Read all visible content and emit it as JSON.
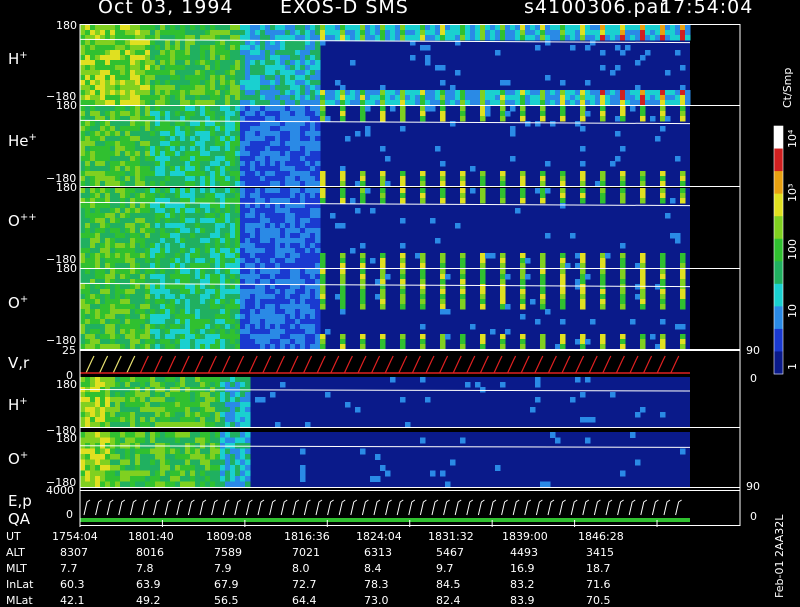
{
  "header": {
    "date": "Oct 03, 1994",
    "instrument": "EXOS-D SMS",
    "file": "s4100306.par",
    "time": "17:54:04"
  },
  "panels": [
    {
      "ion": "H",
      "charge": "+",
      "ytop": "180",
      "ybot": "−180"
    },
    {
      "ion": "He",
      "charge": "+",
      "ytop": "180",
      "ybot": "−180"
    },
    {
      "ion": "O",
      "charge": "++",
      "ytop": "180",
      "ybot": "−180"
    },
    {
      "ion": "O",
      "charge": "+",
      "ytop": "180",
      "ybot": "−180"
    }
  ],
  "vr_panel": {
    "label": "V,r",
    "ytop": "25",
    "ybot": "0",
    "right_top": "90",
    "right_bot": "0"
  },
  "low_panels": [
    {
      "ion": "H",
      "charge": "+",
      "ytop": "180",
      "ybot": "−180"
    },
    {
      "ion": "O",
      "charge": "+",
      "ytop": "180",
      "ybot": "−180"
    }
  ],
  "ep_panel": {
    "label1": "E,p",
    "label2": "QA",
    "ytop": "4000",
    "ybot": "0",
    "right_top": "90",
    "right_bot": "0"
  },
  "colorbar": {
    "unit": "Ct/Smp",
    "labels": [
      "1",
      "10",
      "100",
      "10³",
      "10⁴"
    ],
    "colors": [
      "#0a1a8a",
      "#1a3ad0",
      "#2a8ae6",
      "#1ad0d0",
      "#20b060",
      "#30c030",
      "#80d020",
      "#e0e020",
      "#e8a010",
      "#d02020",
      "#ffffff"
    ]
  },
  "chart_data": {
    "type": "heatmap",
    "title": "Oct 03, 1994   EXOS-D SMS   s4100306.par  17:54:04",
    "x_row_labels": [
      "UT",
      "ALT",
      "MLT",
      "InLat",
      "MLat"
    ],
    "x_columns": [
      {
        "UT": "1754:04",
        "ALT": "8307",
        "MLT": "7.7",
        "InLat": "60.3",
        "MLat": "42.1"
      },
      {
        "UT": "1801:40",
        "ALT": "8016",
        "MLT": "7.8",
        "InLat": "63.9",
        "MLat": "49.2"
      },
      {
        "UT": "1809:08",
        "ALT": "7589",
        "MLT": "7.9",
        "InLat": "67.9",
        "MLat": "56.5"
      },
      {
        "UT": "1816:36",
        "ALT": "7021",
        "MLT": "8.0",
        "InLat": "72.7",
        "MLat": "64.4"
      },
      {
        "UT": "1824:04",
        "ALT": "6313",
        "MLT": "8.4",
        "InLat": "78.3",
        "MLat": "73.0"
      },
      {
        "UT": "1831:32",
        "ALT": "5467",
        "MLT": "9.7",
        "InLat": "84.5",
        "MLat": "82.4"
      },
      {
        "UT": "1839:00",
        "ALT": "4493",
        "MLT": "16.9",
        "InLat": "83.2",
        "MLat": "83.9"
      },
      {
        "UT": "1846:28",
        "ALT": "3415",
        "MLT": "18.7",
        "InLat": "71.6",
        "MLat": "70.5"
      }
    ],
    "ylim_angle": [
      -180,
      180
    ]
  },
  "side_text": "Feb-01 2AA32L"
}
